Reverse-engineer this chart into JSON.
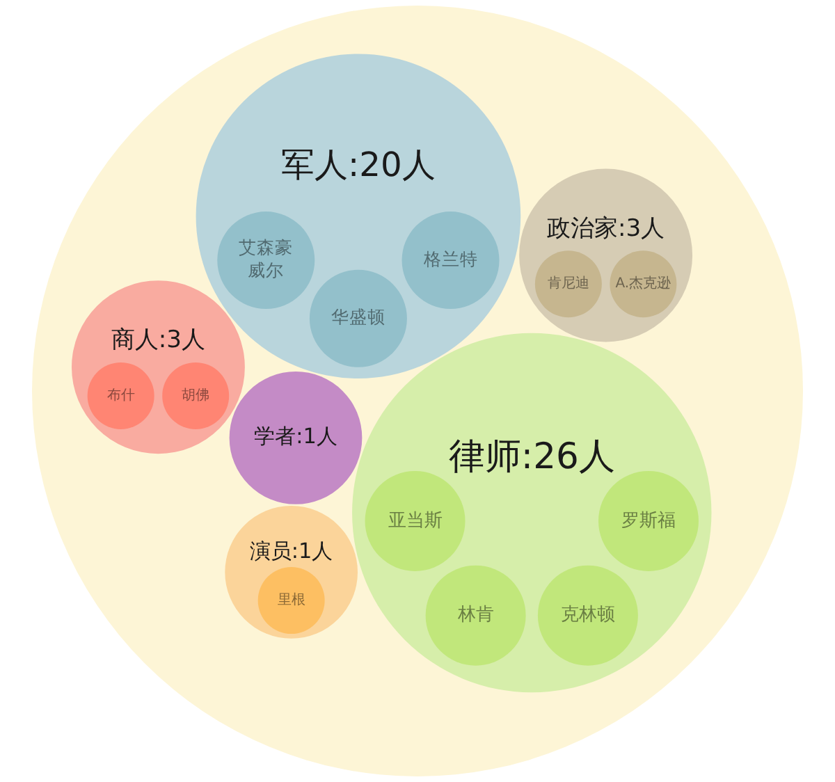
{
  "chart_data": {
    "type": "other",
    "categories": [
      "军人",
      "政治家",
      "学者",
      "演员",
      "律师",
      "商人"
    ],
    "values": [
      20,
      3,
      1,
      1,
      26,
      3
    ],
    "value_labels": [
      ":20人",
      ":3人",
      ":1人",
      ":1人",
      ":26人",
      ":3人"
    ],
    "colors": [
      "#b9d5dc",
      "#d6ccb4",
      "#c48bc6",
      "#fbd49a",
      "#d6eeaa",
      "#f9aba0"
    ],
    "annotations": [
      {
        "text": "格兰特",
        "x": "军人"
      },
      {
        "text": "华盛顿",
        "x": "军人"
      },
      {
        "text": "艾森豪威尔",
        "x": "军人"
      },
      {
        "text": "A.杰克逊",
        "x": "政治家"
      },
      {
        "text": "肯尼迪",
        "x": "政治家"
      },
      {
        "text": "里根",
        "x": "演员"
      },
      {
        "text": "罗斯福",
        "x": "律师"
      },
      {
        "text": "克林顿",
        "x": "律师"
      },
      {
        "text": "林肯",
        "x": "律师"
      },
      {
        "text": "亚当斯",
        "x": "律师"
      },
      {
        "text": "胡佛",
        "x": "商人"
      },
      {
        "text": "布什",
        "x": "商人"
      }
    ]
  }
}
